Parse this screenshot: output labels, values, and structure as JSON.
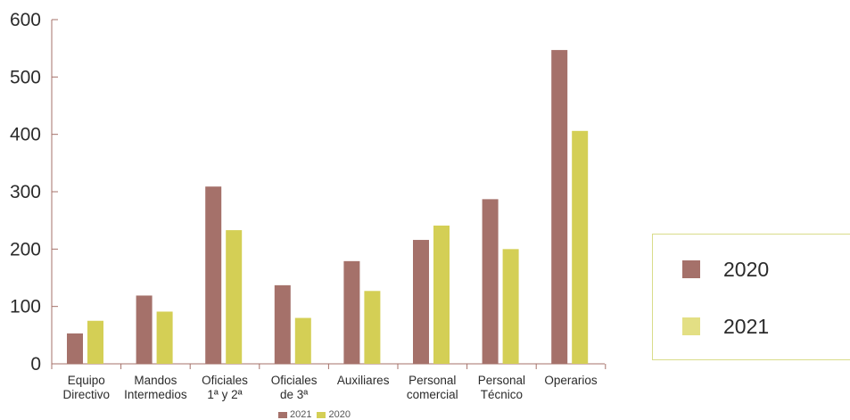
{
  "chart_data": {
    "type": "bar",
    "categories": [
      [
        "Equipo",
        "Directivo"
      ],
      [
        "Mandos",
        "Intermedios"
      ],
      [
        "Oficiales",
        "1ª y 2ª"
      ],
      [
        "Oficiales",
        "de 3ª"
      ],
      [
        "Auxiliares"
      ],
      [
        "Personal",
        "comercial"
      ],
      [
        "Personal",
        "Técnico"
      ],
      [
        "Operarios"
      ]
    ],
    "series": [
      {
        "name": "2020",
        "color": "#a5716a",
        "values": [
          53,
          119,
          309,
          137,
          179,
          216,
          287,
          547
        ]
      },
      {
        "name": "2021",
        "color": "#d4cf55",
        "values": [
          75,
          91,
          233,
          80,
          127,
          241,
          200,
          406
        ]
      }
    ],
    "ylim": [
      0,
      600
    ],
    "yticks": [
      0,
      100,
      200,
      300,
      400,
      500,
      600
    ],
    "legend": {
      "position": "right",
      "entries": [
        "2020",
        "2021"
      ]
    },
    "mini_legend": [
      "2021",
      "2020"
    ]
  }
}
